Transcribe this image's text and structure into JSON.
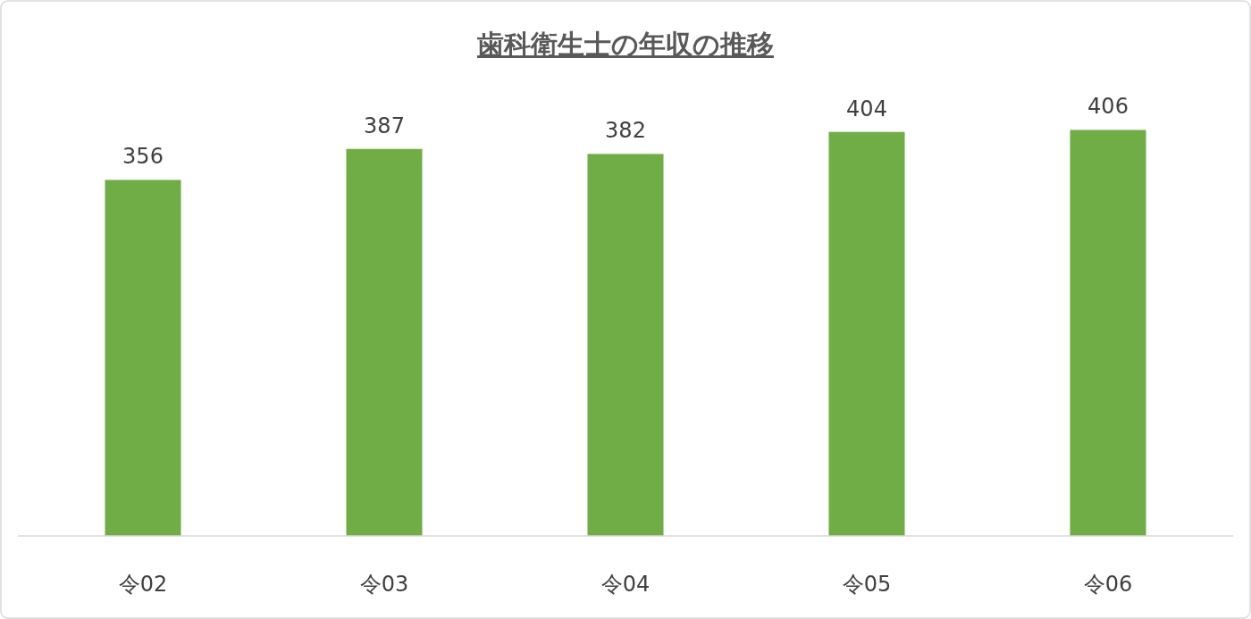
{
  "chart_data": {
    "type": "bar",
    "title": "歯科衛生士の年収の推移",
    "categories": [
      "令02",
      "令03",
      "令04",
      "令05",
      "令06"
    ],
    "values": [
      356,
      387,
      382,
      404,
      406
    ],
    "color": "#70ad47",
    "data_labels": true
  }
}
